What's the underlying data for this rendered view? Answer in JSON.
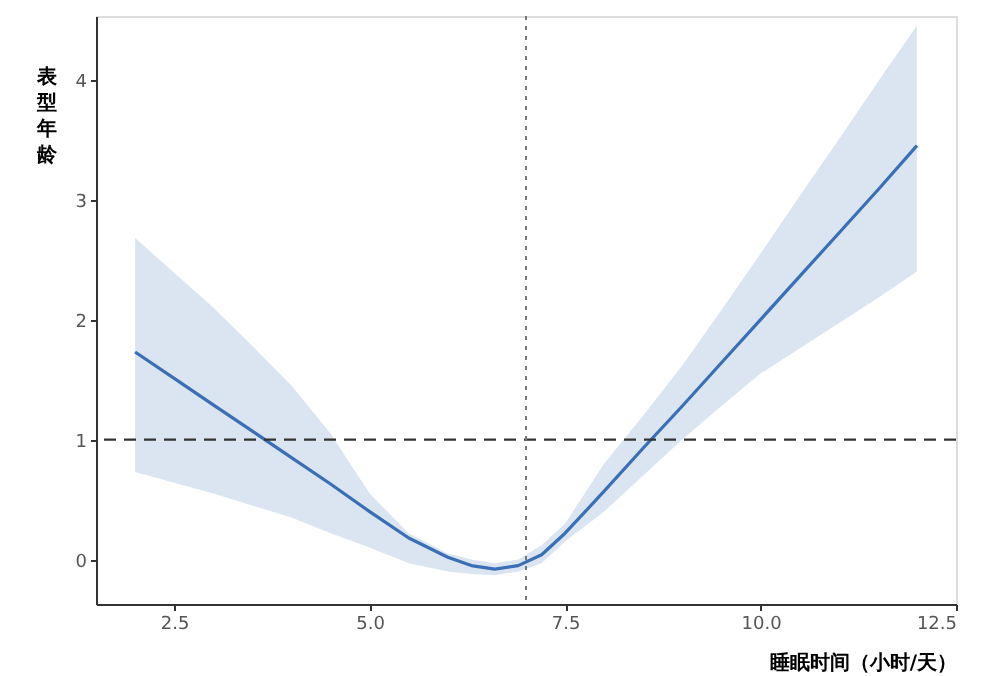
{
  "chart_data": {
    "type": "line",
    "xlabel": "睡眠时间（小时/天）",
    "ylabel": "表型年龄",
    "xlim": [
      1.5,
      12.5
    ],
    "xticks": [
      {
        "value": 2.5,
        "label": "2.5"
      },
      {
        "value": 5,
        "label": "5.0"
      },
      {
        "value": 7.5,
        "label": "7.5"
      },
      {
        "value": 10,
        "label": "10.0"
      },
      {
        "value": 12.5,
        "label": "12.5"
      }
    ],
    "ylim": [
      -0.37,
      4.53
    ],
    "yticks": [
      0,
      1,
      2,
      3,
      4
    ],
    "grid": false,
    "marker": "none",
    "line_style": "solid",
    "series": [
      {
        "color": "#3a6fb5",
        "x": [
          2,
          2.5,
          3,
          3.5,
          4,
          4.5,
          5,
          5.5,
          6,
          6.3,
          6.6,
          6.9,
          7.2,
          7.5,
          8,
          8.5,
          9,
          9.5,
          10,
          10.5,
          11,
          11.5,
          12
        ],
        "values": [
          1.73,
          1.51,
          1.29,
          1.07,
          0.85,
          0.63,
          0.4,
          0.18,
          0.02,
          -0.05,
          -0.08,
          -0.05,
          0.04,
          0.22,
          0.57,
          0.93,
          1.28,
          1.64,
          2.0,
          2.36,
          2.72,
          3.08,
          3.45
        ],
        "upper": [
          2.68,
          2.39,
          2.1,
          1.78,
          1.45,
          1.05,
          0.55,
          0.22,
          0.05,
          0.0,
          -0.03,
          0.0,
          0.12,
          0.3,
          0.8,
          1.2,
          1.62,
          2.08,
          2.55,
          3.03,
          3.5,
          3.98,
          4.45
        ],
        "lower": [
          0.73,
          0.64,
          0.55,
          0.45,
          0.35,
          0.22,
          0.1,
          -0.03,
          -0.1,
          -0.12,
          -0.13,
          -0.1,
          -0.03,
          0.15,
          0.4,
          0.7,
          1.0,
          1.28,
          1.55,
          1.76,
          1.97,
          2.18,
          2.4
        ]
      }
    ],
    "ref_lines": [
      {
        "axis": "y",
        "value": 1,
        "color": "#333333",
        "line_style": "dashed"
      },
      {
        "axis": "x",
        "value": 7,
        "color": "#777777",
        "line_style": "dotted"
      }
    ]
  }
}
